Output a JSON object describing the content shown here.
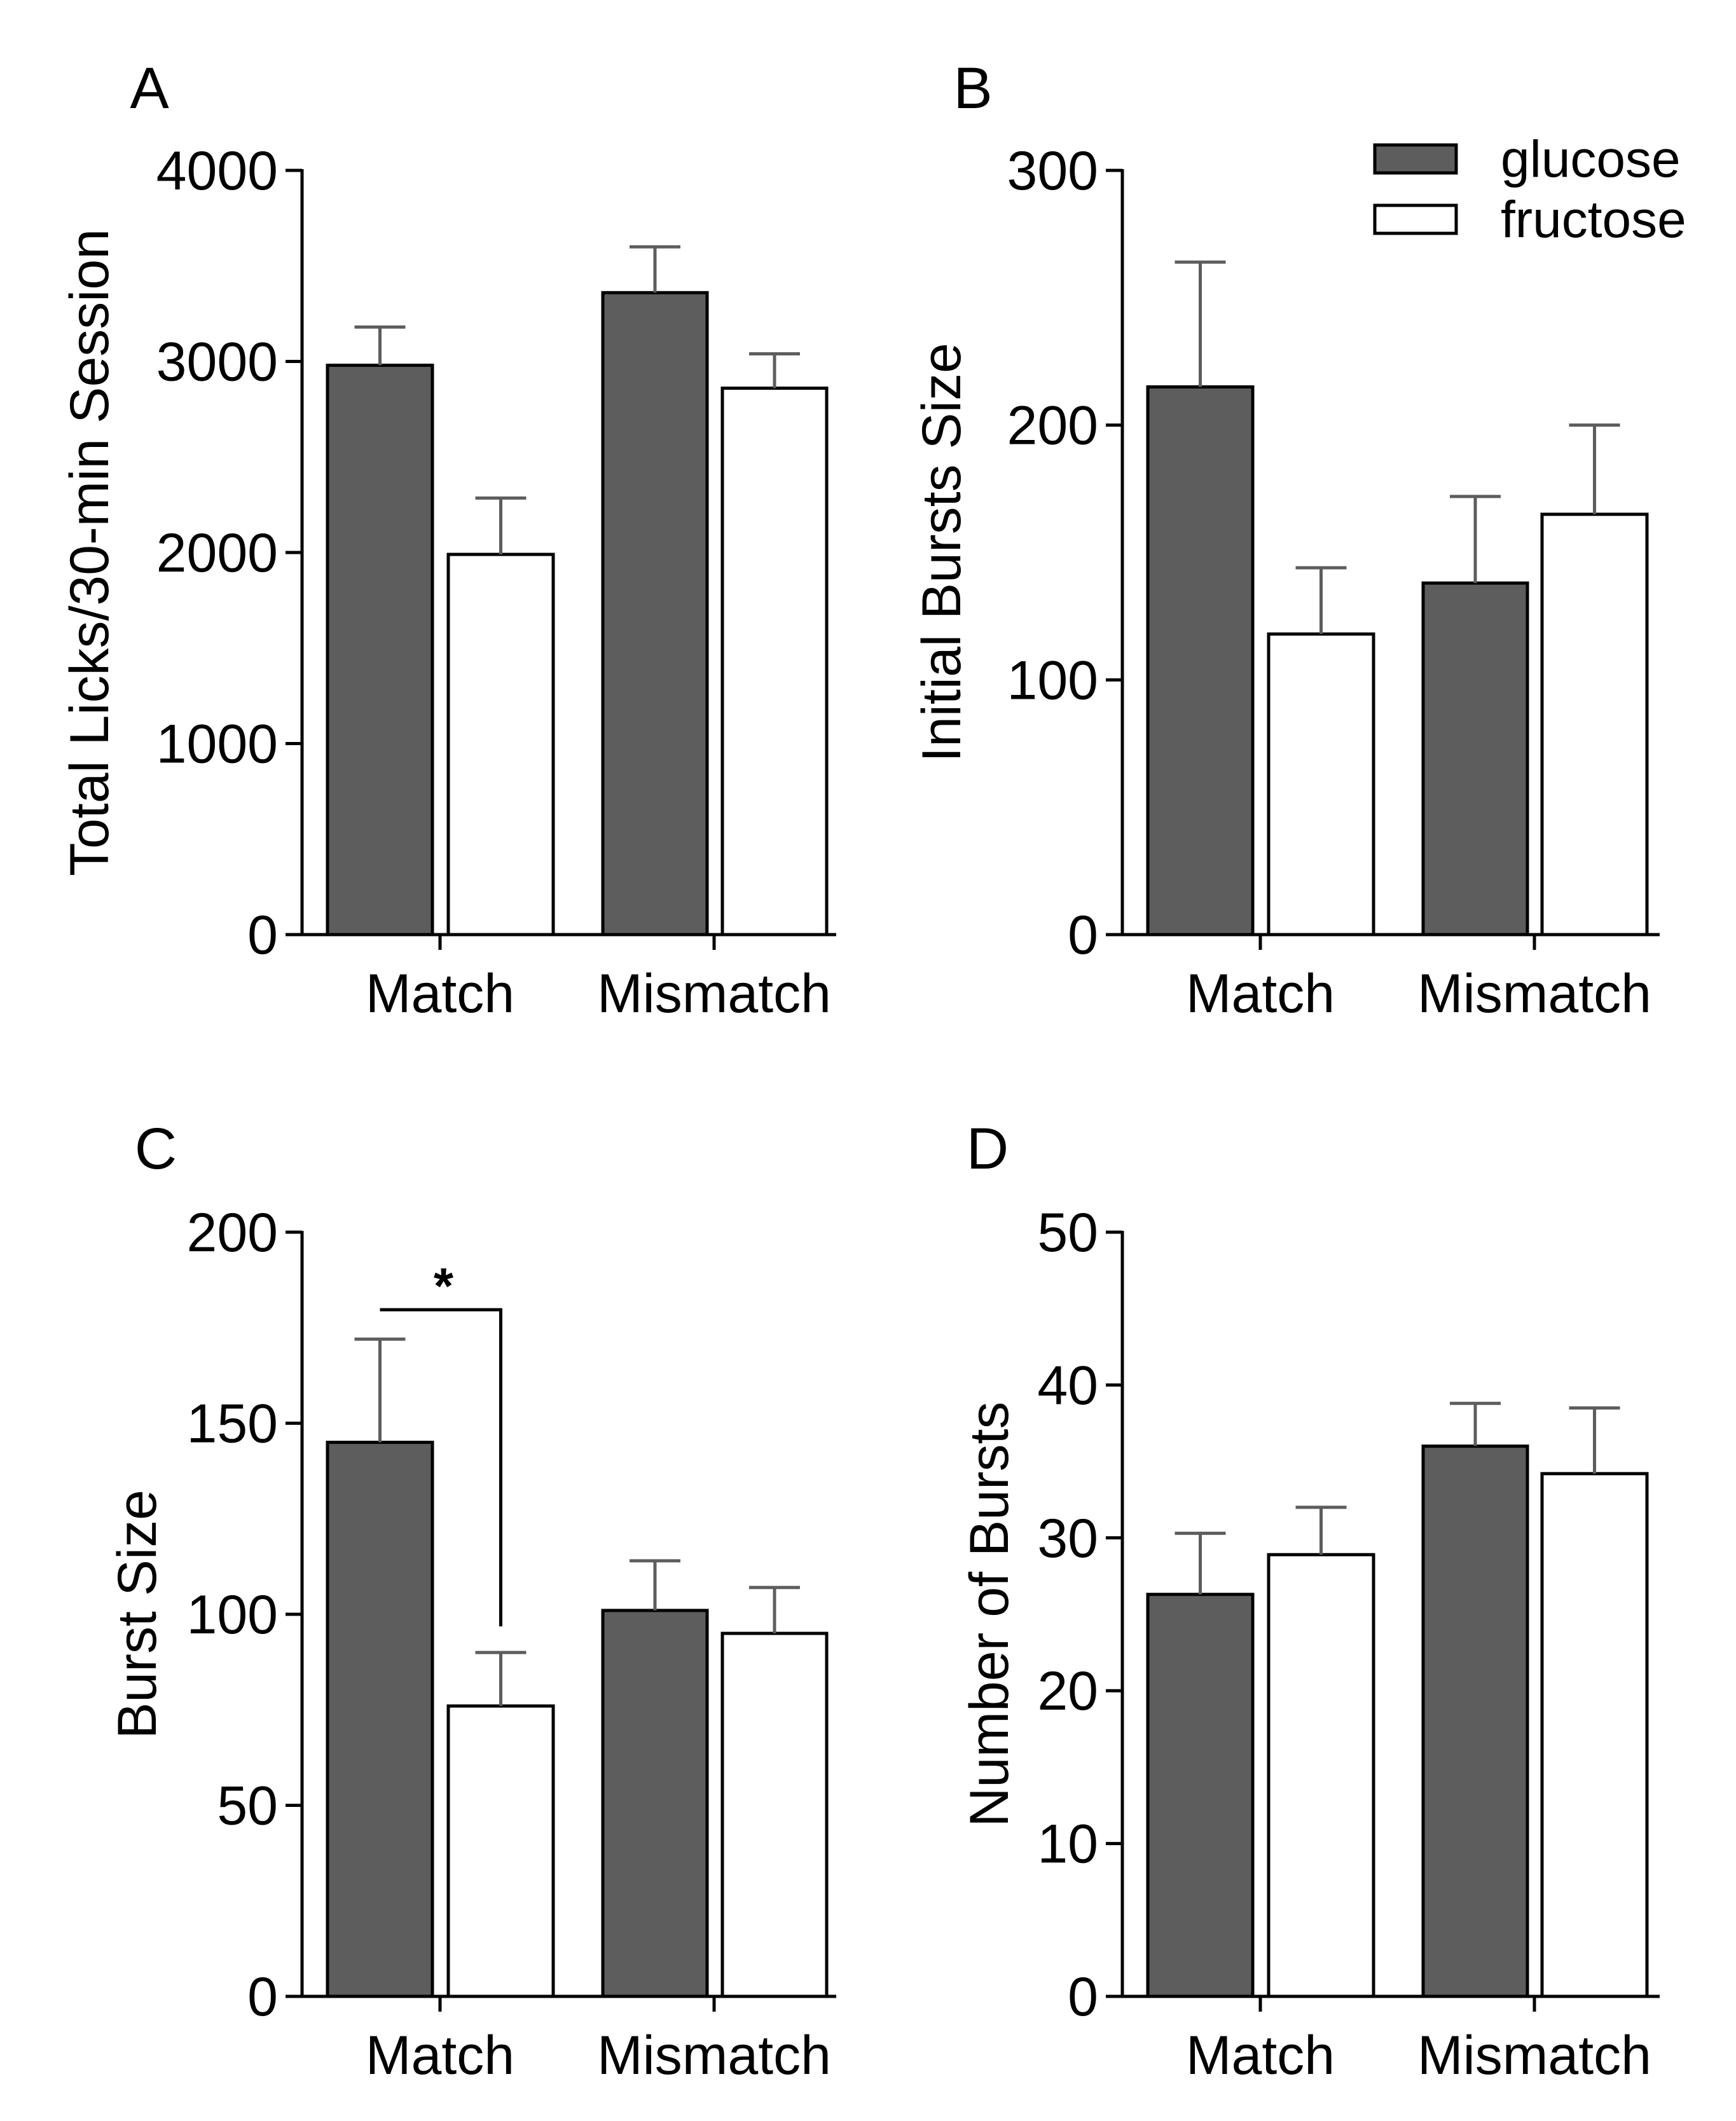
{
  "legend": {
    "entries": [
      {
        "name": "glucose",
        "color": "#5d5d5d"
      },
      {
        "name": "fructose",
        "color": "#ffffff"
      }
    ]
  },
  "colors": {
    "glucose": "#5d5d5d",
    "fructose": "#ffffff",
    "axis": "#000000",
    "error_bar": "#5d5d5d"
  },
  "chart_data": [
    {
      "panel": "A",
      "type": "bar",
      "categories": [
        "Match",
        "Mismatch"
      ],
      "series": [
        {
          "name": "glucose",
          "values": [
            2980,
            3360
          ],
          "errors": [
            200,
            240
          ]
        },
        {
          "name": "fructose",
          "values": [
            1990,
            2860
          ],
          "errors": [
            295,
            180
          ]
        }
      ],
      "ylabel": "Total Licks/30-min Session",
      "xlabel": "",
      "ylim": [
        0,
        4000
      ],
      "yticks": [
        0,
        1000,
        2000,
        3000,
        4000
      ],
      "yticklabels": [
        "0",
        "1000",
        "2000",
        "3000",
        "4000"
      ]
    },
    {
      "panel": "B",
      "type": "bar",
      "categories": [
        "Match",
        "Mismatch"
      ],
      "series": [
        {
          "name": "glucose",
          "values": [
            215,
            138
          ],
          "errors": [
            49,
            34
          ]
        },
        {
          "name": "fructose",
          "values": [
            118,
            165
          ],
          "errors": [
            26,
            35
          ]
        }
      ],
      "ylabel": "Initial Bursts Size",
      "xlabel": "",
      "ylim": [
        0,
        300
      ],
      "yticks": [
        0,
        100,
        200,
        300
      ],
      "yticklabels": [
        "0",
        "100",
        "200",
        "300"
      ]
    },
    {
      "panel": "C",
      "type": "bar",
      "categories": [
        "Match",
        "Mismatch"
      ],
      "series": [
        {
          "name": "glucose",
          "values": [
            145,
            101
          ],
          "errors": [
            27,
            13
          ]
        },
        {
          "name": "fructose",
          "values": [
            76,
            95
          ],
          "errors": [
            14,
            12
          ]
        }
      ],
      "ylabel": "Burst Size",
      "xlabel": "",
      "ylim": [
        0,
        200
      ],
      "yticks": [
        0,
        50,
        100,
        150,
        200
      ],
      "yticklabels": [
        "0",
        "50",
        "100",
        "150",
        "200"
      ],
      "annotation": {
        "text": "*",
        "between": [
          "Match glucose",
          "Match fructose"
        ]
      }
    },
    {
      "panel": "D",
      "type": "bar",
      "categories": [
        "Match",
        "Mismatch"
      ],
      "series": [
        {
          "name": "glucose",
          "values": [
            26.3,
            36
          ],
          "errors": [
            4,
            2.8
          ]
        },
        {
          "name": "fructose",
          "values": [
            28.9,
            34.2
          ],
          "errors": [
            3.1,
            4.3
          ]
        }
      ],
      "ylabel": "Number of Bursts",
      "xlabel": "",
      "ylim": [
        0,
        50
      ],
      "yticks": [
        0,
        10,
        20,
        30,
        40,
        50
      ],
      "yticklabels": [
        "0",
        "10",
        "20",
        "30",
        "40",
        "50"
      ]
    }
  ]
}
